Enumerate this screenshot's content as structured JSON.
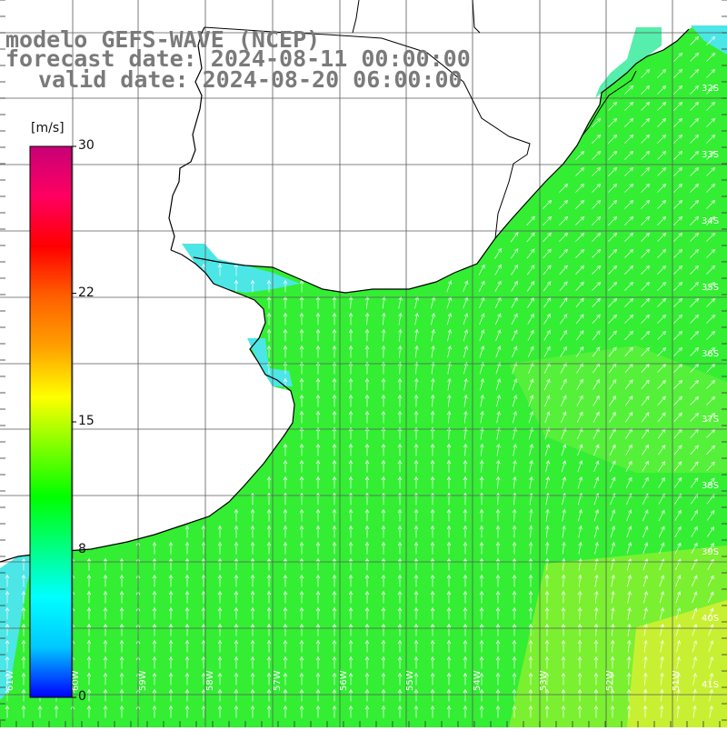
{
  "title": {
    "line1": "modelo GEFS-WAVE (NCEP)",
    "line2": "forecast date: 2024-08-11 00:00:00",
    "line3": "valid date: 2024-08-20 06:00:00"
  },
  "colorbar": {
    "unit": "[m/s]",
    "ticks": [
      "30",
      "22",
      "15",
      "8",
      "0"
    ],
    "min": 0,
    "max": 30,
    "colors": [
      "#0000ff",
      "#00c8ff",
      "#00ffff",
      "#00ff80",
      "#00ff00",
      "#80ff00",
      "#ffff00",
      "#ffa000",
      "#ff6000",
      "#ff0000",
      "#ff0060",
      "#c80078"
    ]
  },
  "map": {
    "field": "wind speed with direction arrows",
    "field_colors": {
      "ocean_main": "#33ee33",
      "coastal": "#55eeaa",
      "low_speed": "#4ce6e6",
      "high_speed": "#c8f032",
      "land": "#ffffff"
    },
    "latitude_labels": [
      "34S",
      "35S",
      "36S",
      "37S",
      "38S",
      "39S",
      "40S",
      "41S",
      "32S",
      "33S"
    ],
    "longitude_labels": [
      "61W",
      "60W",
      "59W",
      "58W",
      "57W",
      "56W",
      "55W",
      "54W",
      "53W",
      "52W",
      "51W"
    ],
    "arrow_color": "#ffffff",
    "coastline_color": "#000000",
    "grid_color": "#5a5a5a"
  }
}
